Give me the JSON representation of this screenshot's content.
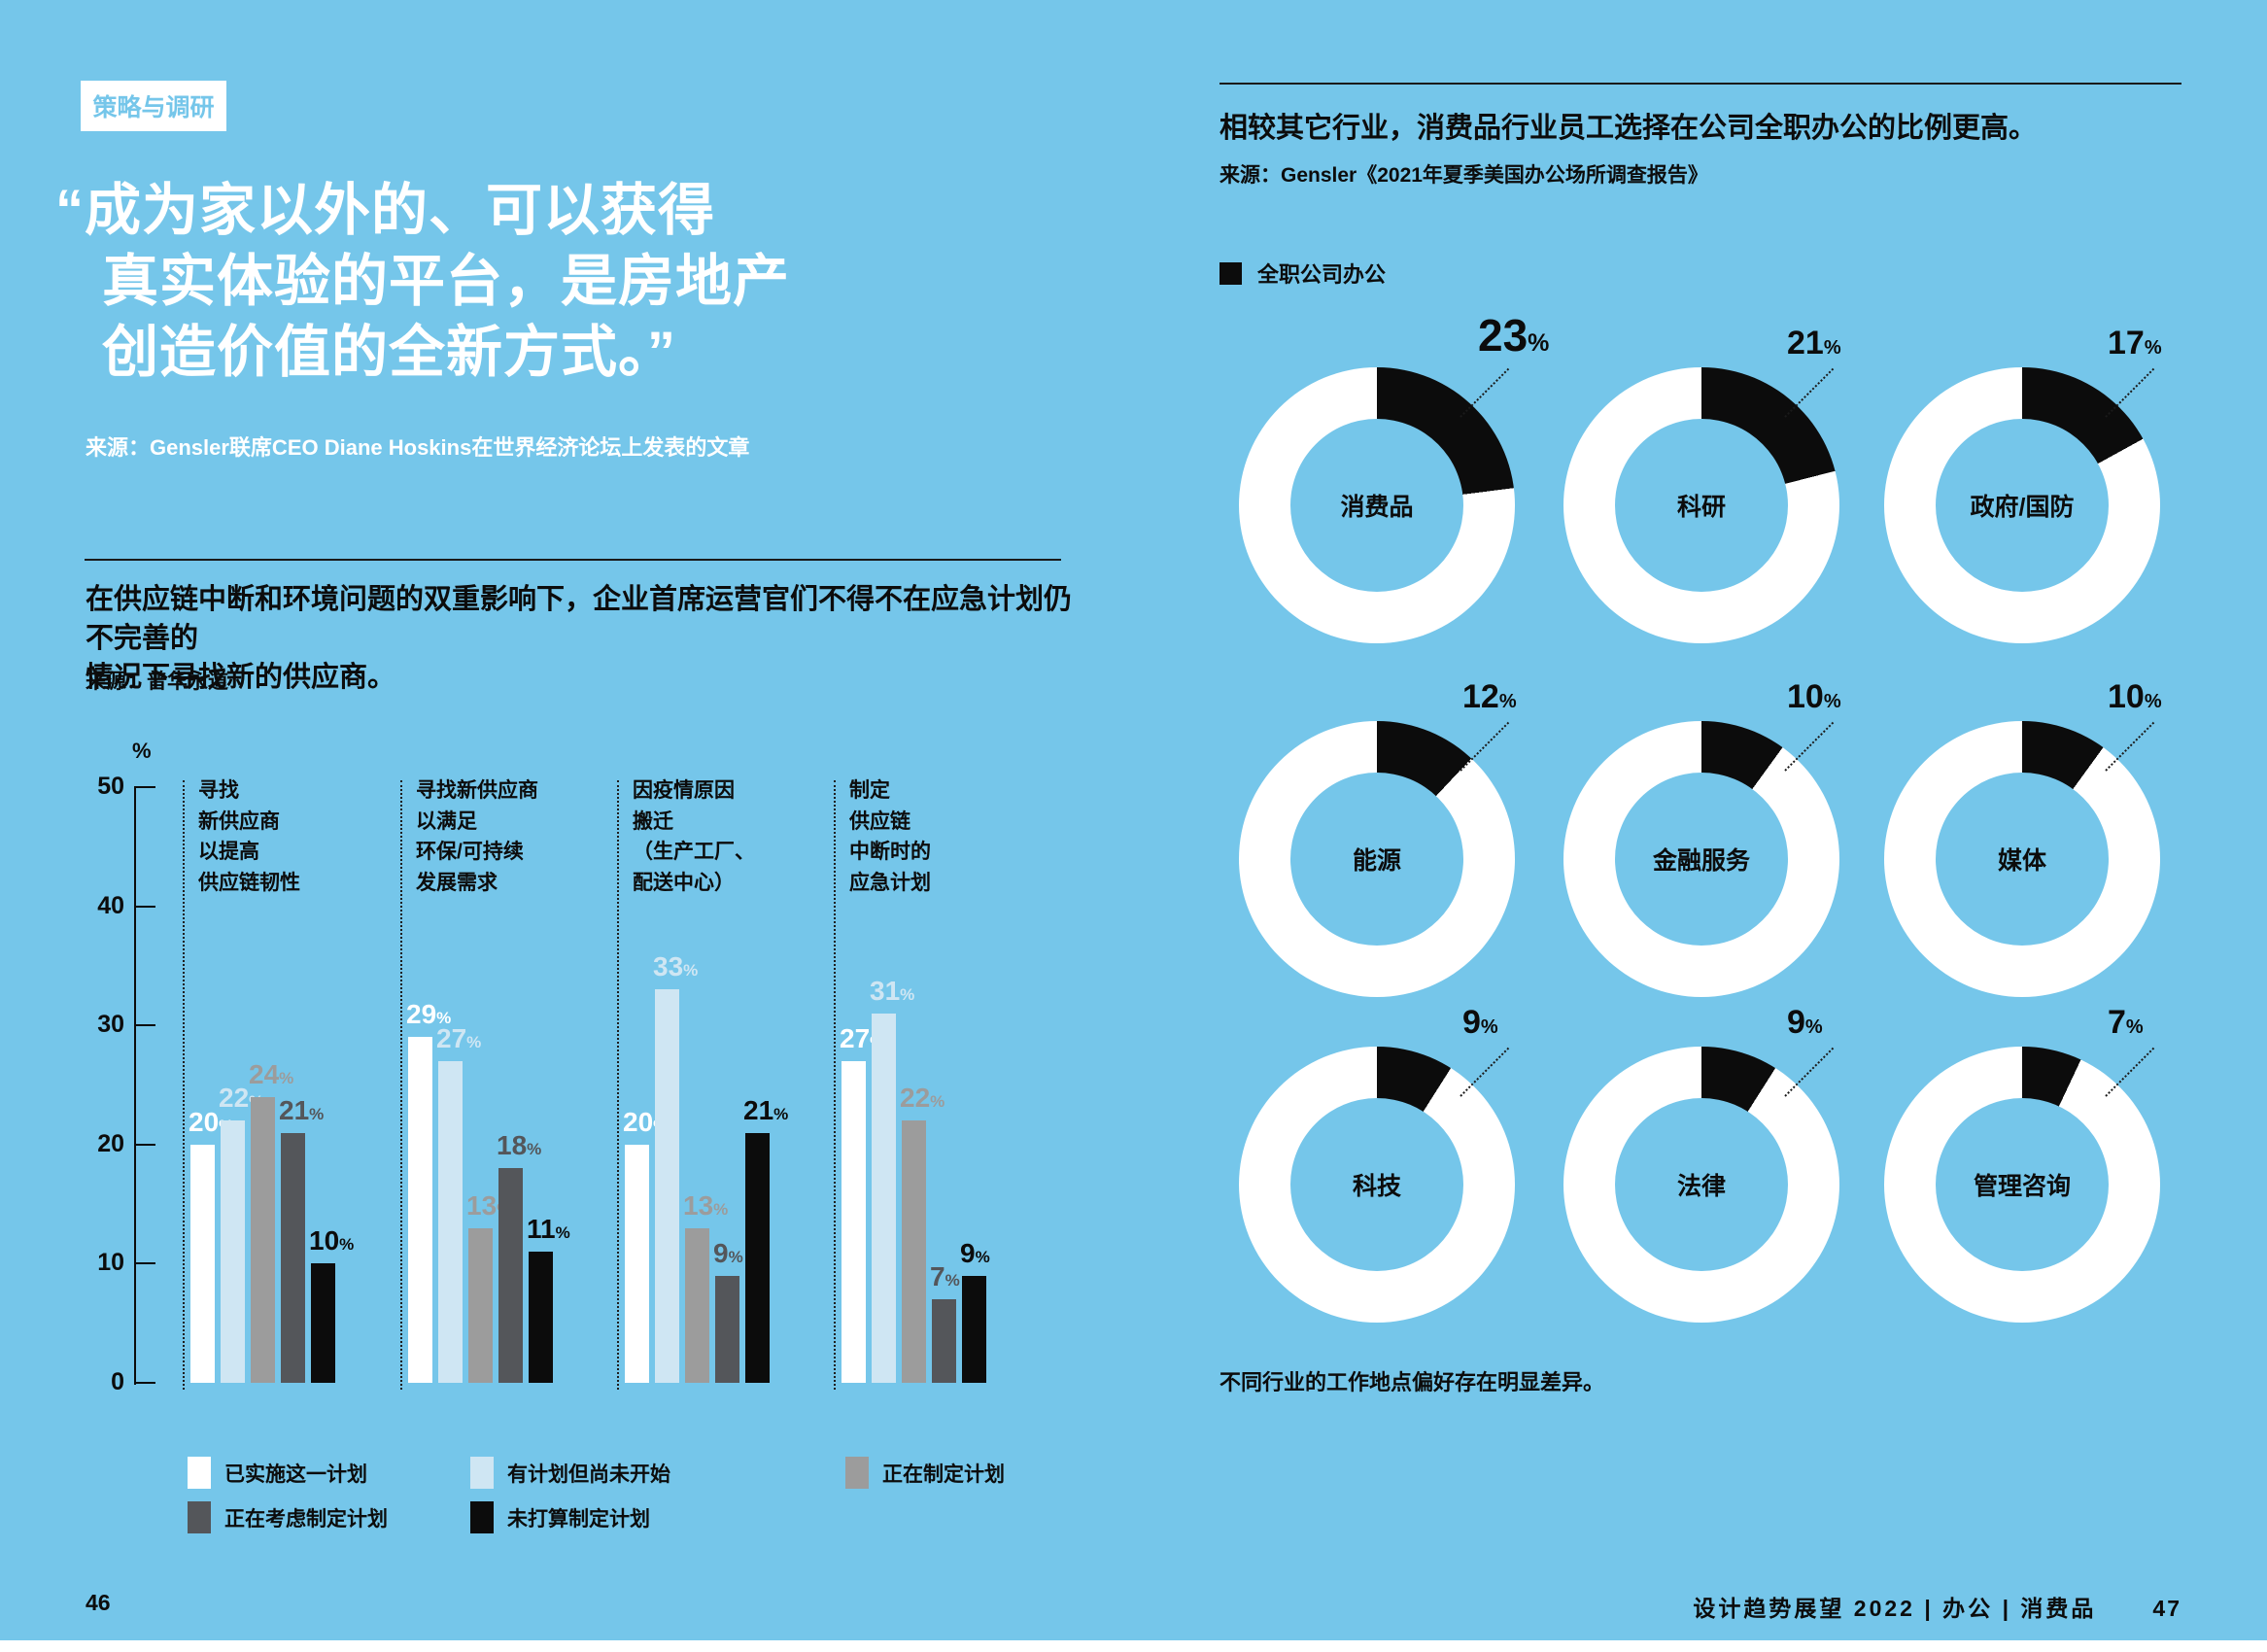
{
  "colors": {
    "background": "#75c6ea",
    "white": "#ffffff",
    "light_blue": "#cfe6f3",
    "mid_gray": "#9c9c9c",
    "dark_gray": "#54565a",
    "black": "#0c0c0c"
  },
  "left": {
    "tag": "策略与调研",
    "quote_lines": [
      "“成为家以外的、可以获得",
      "真实体验的平台，是房地产",
      "创造价值的全新方式。”"
    ],
    "quote_source": "来源：Gensler联席CEO Diane Hoskins在世界经济论坛上发表的文章",
    "intro": "在供应链中断和环境问题的双重影响下，企业首席运营官们不得不在应急计划仍不完善的\n情况下寻找新的供应商。",
    "intro_source": "来源：普华永道",
    "page_number": "46"
  },
  "right": {
    "heading": "相较其它行业，消费品行业员工选择在公司全职办公的比例更高。",
    "source": "来源：Gensler《2021年夏季美国办公场所调查报告》",
    "legend_label": "全职公司办公",
    "caption": "不同行业的工作地点偏好存在明显差异。",
    "footer_title": "设计趋势展望 2022 | 办公 | 消费品",
    "page_number": "47"
  },
  "chart_data": [
    {
      "type": "bar",
      "title": "企业供应链应对计划",
      "ylabel": "%",
      "ylim": [
        0,
        50
      ],
      "yticks": [
        0,
        10,
        20,
        30,
        40,
        50
      ],
      "grid": false,
      "legend_position": "bottom",
      "categories": [
        "寻找\n新供应商\n以提高\n供应链韧性",
        "寻找新供应商\n以满足\n环保/可持续\n发展需求",
        "因疫情原因\n搬迁\n（生产工厂、\n配送中心）",
        "制定\n供应链\n中断时的\n应急计划"
      ],
      "series": [
        {
          "name": "已实施这一计划",
          "color": "#ffffff",
          "values": [
            20,
            29,
            20,
            27
          ]
        },
        {
          "name": "有计划但尚未开始",
          "color": "#cfe6f3",
          "values": [
            22,
            27,
            33,
            31
          ]
        },
        {
          "name": "正在制定计划",
          "color": "#9c9c9c",
          "values": [
            24,
            13,
            13,
            22
          ]
        },
        {
          "name": "正在考虑制定计划",
          "color": "#54565a",
          "values": [
            21,
            18,
            9,
            7
          ]
        },
        {
          "name": "未打算制定计划",
          "color": "#0c0c0c",
          "values": [
            10,
            11,
            21,
            9
          ]
        }
      ],
      "unit": "%"
    },
    {
      "type": "pie",
      "subtype": "donut",
      "legend": "全职公司办公",
      "unit": "%",
      "items": [
        {
          "label": "消费品",
          "value": 23,
          "highlight": true
        },
        {
          "label": "科研",
          "value": 21,
          "highlight": false
        },
        {
          "label": "政府/国防",
          "value": 17,
          "highlight": false
        },
        {
          "label": "能源",
          "value": 12,
          "highlight": false
        },
        {
          "label": "金融服务",
          "value": 10,
          "highlight": false
        },
        {
          "label": "媒体",
          "value": 10,
          "highlight": false
        },
        {
          "label": "科技",
          "value": 9,
          "highlight": false
        },
        {
          "label": "法律",
          "value": 9,
          "highlight": false
        },
        {
          "label": "管理咨询",
          "value": 7,
          "highlight": false
        }
      ]
    }
  ]
}
